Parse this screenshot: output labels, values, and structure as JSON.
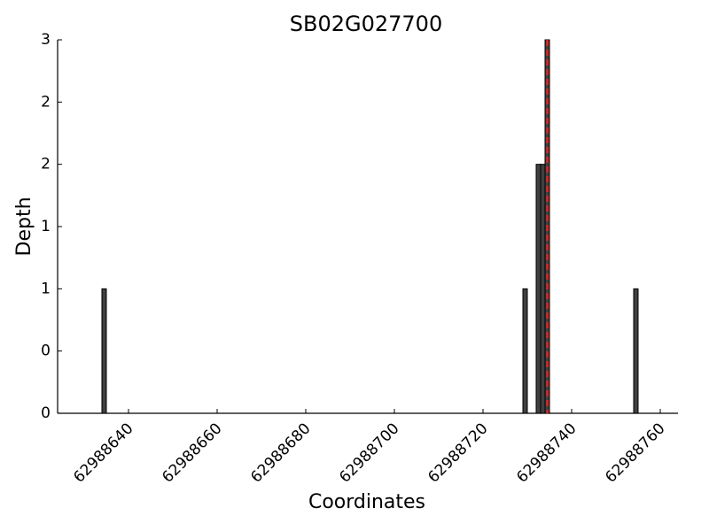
{
  "chart_data": {
    "type": "bar",
    "title": "SB02G027700",
    "xlabel": "Coordinates",
    "ylabel": "Depth",
    "x": [
      62988634,
      62988729,
      62988732,
      62988733,
      62988734,
      62988754
    ],
    "values": [
      1,
      1,
      2,
      2,
      3,
      1
    ],
    "bar_width": 1,
    "color": "#404040",
    "vline": {
      "x": 62988734.5,
      "color": "#d62728"
    },
    "xlim": [
      62988624,
      62988764
    ],
    "xticks": [
      62988640,
      62988660,
      62988680,
      62988700,
      62988720,
      62988740,
      62988760
    ],
    "ylim": [
      0,
      3
    ],
    "yticks": [
      0,
      {
        "value": 0.5,
        "label": "0"
      },
      1,
      {
        "value": 1.5,
        "label": "1"
      },
      2,
      {
        "value": 2.5,
        "label": "2"
      },
      3
    ],
    "grid": false
  }
}
